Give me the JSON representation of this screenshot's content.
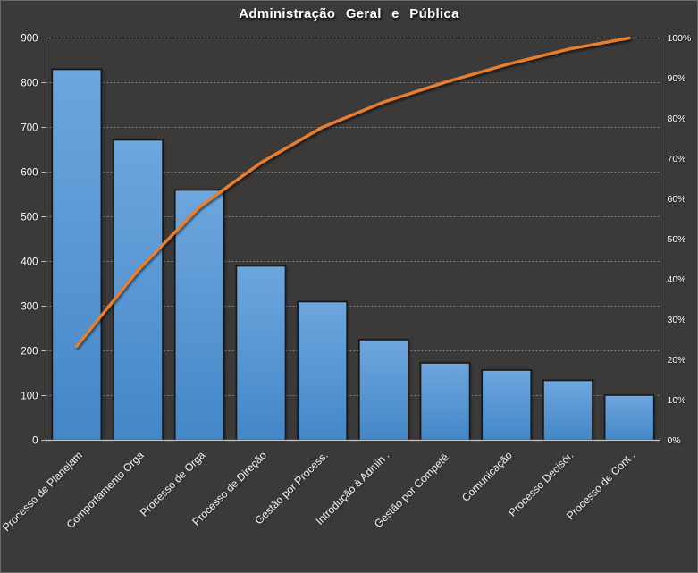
{
  "window": {
    "background": "#3b3a39",
    "border": "#6a6a6a"
  },
  "chart_data": {
    "type": "bar",
    "subtype": "pareto",
    "title": "Administração Geral e Pública",
    "categories": [
      "Processo de Planejam",
      "Comportamento Orga",
      "Processo de Orga",
      "Processo de Direção",
      "Gestão por Process.",
      "Introdução à Admin .",
      "Gestão por Competê.",
      "Comunicação",
      "Processo Decisór.",
      "Processo de Cont ."
    ],
    "series": [
      {
        "role": "bars",
        "values": [
          830,
          672,
          560,
          390,
          310,
          225,
          173,
          157,
          134,
          101
        ]
      },
      {
        "role": "cumulative-line",
        "axis": "right",
        "values_pct": [
          23.4,
          42.3,
          58.0,
          69.0,
          77.8,
          84.1,
          89.0,
          93.4,
          97.2,
          100
        ]
      }
    ],
    "left_axis": {
      "min": 0,
      "max": 900,
      "step": 100,
      "tick_labels": [
        "0",
        "100",
        "200",
        "300",
        "400",
        "500",
        "600",
        "700",
        "800",
        "900"
      ]
    },
    "right_axis": {
      "min_pct": 0,
      "max_pct": 100,
      "step_pct": 10,
      "tick_labels": [
        "0%",
        "10%",
        "20%",
        "30%",
        "40%",
        "50%",
        "60%",
        "70%",
        "80%",
        "90%",
        "100%"
      ]
    },
    "grid": "horizontal-dashed",
    "legend": "none",
    "colors": {
      "bar_top": "#6ea6de",
      "bar_bottom": "#4387c7",
      "bar_border": "#161616",
      "line": "#e87e2d",
      "gridline": "#9a9a9a",
      "axis_line": "#c6c6c6",
      "text": "#ffffff",
      "background": "#3b3a39"
    }
  }
}
